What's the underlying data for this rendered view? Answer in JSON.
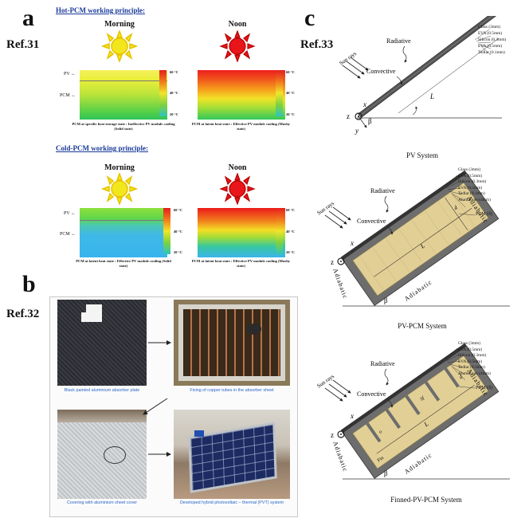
{
  "panel_a": {
    "letter": "a",
    "ref": "Ref.31",
    "hot_title": "Hot-PCM working principle:",
    "cold_title": "Cold-PCM working principle:",
    "morning": "Morning",
    "noon": "Noon",
    "pv_label": "PV",
    "pcm_label": "PCM",
    "ticks": [
      "60 °C",
      "40 °C",
      "20 °C"
    ],
    "hot_morning_caption": "PCM at specific heat storage state : Ineffective PV module cooling (Solid state)",
    "hot_noon_caption": "PCM at latent heat state : Effective PV module cooling (Mushy state)",
    "cold_morning_caption": "PCM at latent heat state : Effective PV module cooling (Solid state)",
    "cold_noon_caption": "PCM at latent heat state : Effective PV module cooling (Mushy state)"
  },
  "panel_b": {
    "letter": "b",
    "ref": "Ref.32",
    "captions": [
      "Black painted aluminium absorber plate",
      "Fixing of copper tubes in the absorber sheet",
      "Covering with aluminium sheet cover",
      "Developed hybrid photovoltaic – thermal (PVT) system"
    ]
  },
  "panel_c": {
    "letter": "c",
    "ref": "Ref.33",
    "layers_pv": [
      "Glass (3mm)",
      "EVA (0.5mm)",
      "Silicon (0.3mm)",
      "EVA (0.5mm)",
      "Tedlar (0.1mm)"
    ],
    "layers_pcm": [
      "Glass (3mm)",
      "EVA (0.5mm)",
      "Silicon (0.3mm)",
      "EVA (0.5mm)",
      "Tedlar (0.1mm)",
      "Aluminium (4mm)"
    ],
    "sun_rays": "Sun rays",
    "radiative": "Radiative",
    "convective": "Convective",
    "adiabatic": "Adiabatic",
    "pcm_delta": "PCM (δ)",
    "beta": "β",
    "x": "x",
    "y": "y",
    "z": "z",
    "L": "L",
    "d": "d",
    "fin": "Fin",
    "sf": "Sf",
    "o": "o",
    "pv_system": "PV System",
    "pv_pcm_system": "PV-PCM System",
    "finned_system": "Finned-PV-PCM System"
  },
  "colors": {
    "title_blue": "#1a3a9a",
    "caption_blue": "#2a66c8",
    "sun_yellow": "#f2e71c",
    "sun_red": "#e8151b",
    "pcm_panel": "#e2cf96",
    "frame_gray": "#6d6d6d"
  }
}
